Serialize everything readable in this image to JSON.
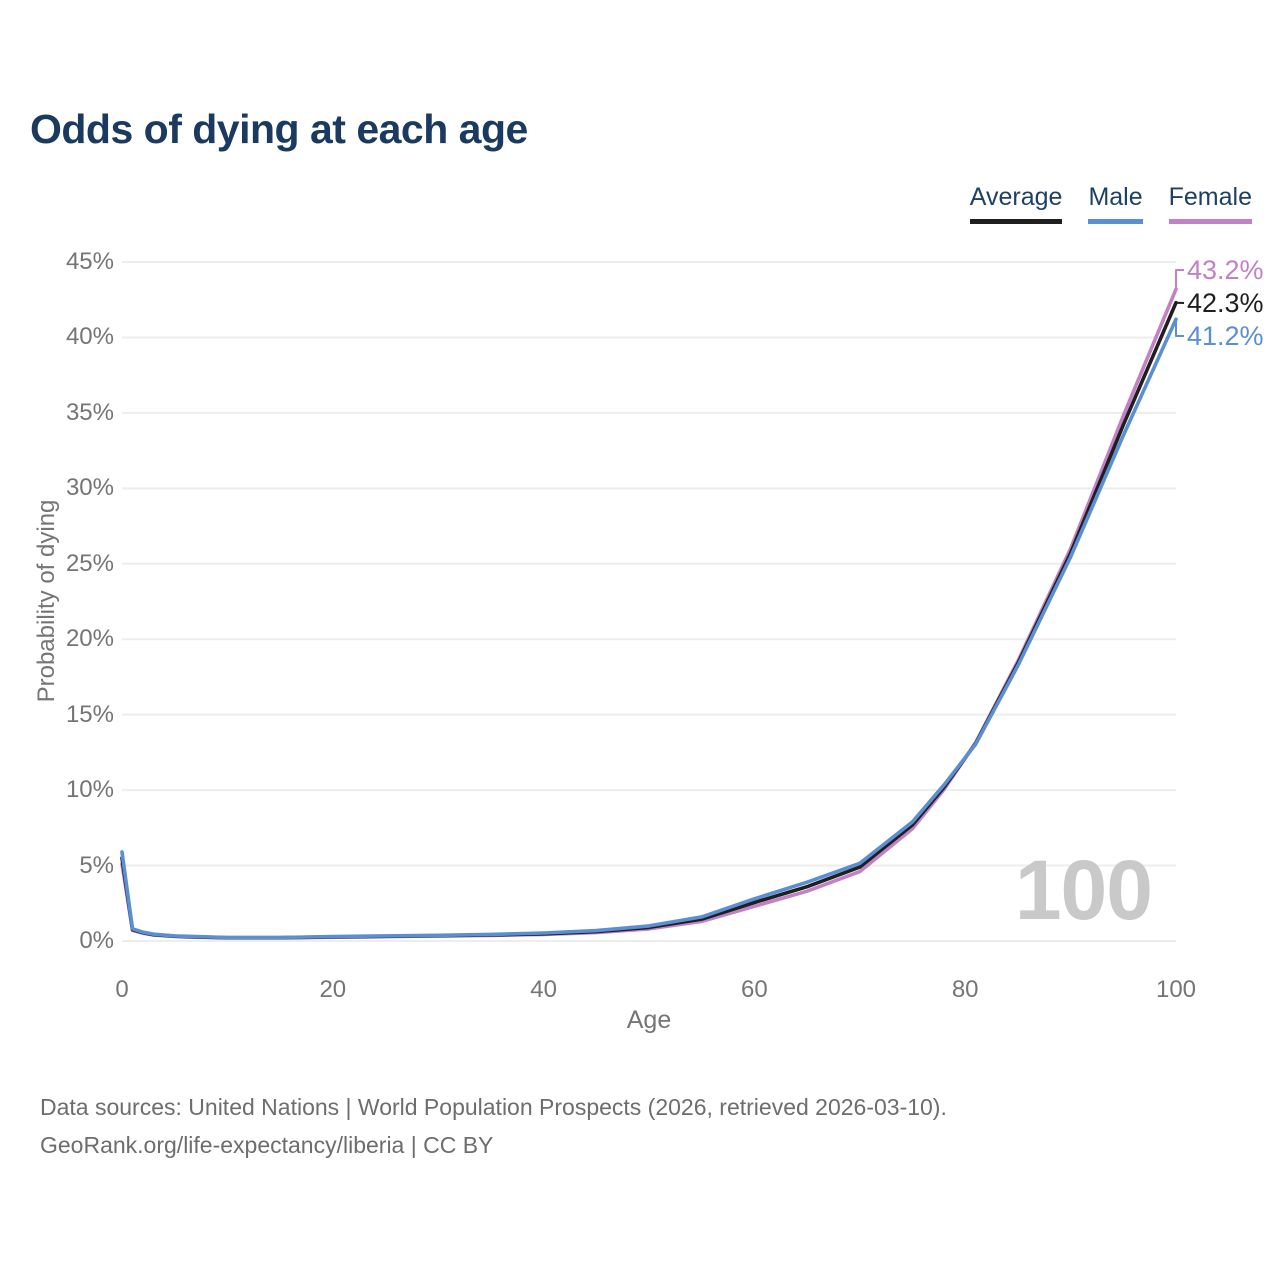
{
  "title": "Odds of dying at each age",
  "legend": {
    "items": [
      {
        "label": "Average",
        "color": "#1f1f1f"
      },
      {
        "label": "Male",
        "color": "#5b8fd3"
      },
      {
        "label": "Female",
        "color": "#c181c4"
      }
    ]
  },
  "watermark": "100",
  "footer": {
    "line1": "Data sources: United Nations | World Population Prospects (2026, retrieved 2026-03-10).",
    "line2": "GeoRank.org/life-expectancy/liberia | CC BY"
  },
  "colors": {
    "title_text": "#1b3a5f",
    "axis_text": "#757575",
    "gridline": "#ededed",
    "watermark": "#c9c9c9",
    "footer_text": "#6d6d6d"
  },
  "chart_data": {
    "type": "line",
    "title": "Odds of dying at each age",
    "xlabel": "Age",
    "ylabel": "Probability of dying",
    "xlim": [
      0,
      100
    ],
    "ylim": [
      0,
      45
    ],
    "xticks": [
      0,
      20,
      40,
      60,
      80,
      100
    ],
    "yticks": [
      "0%",
      "5%",
      "10%",
      "15%",
      "20%",
      "25%",
      "30%",
      "35%",
      "40%",
      "45%"
    ],
    "grid": "horizontal",
    "legend_position": "top-right",
    "x": [
      0,
      1,
      2,
      3,
      5,
      7,
      10,
      15,
      20,
      25,
      30,
      35,
      40,
      45,
      50,
      55,
      60,
      65,
      70,
      75,
      78,
      81,
      85,
      90,
      95,
      100
    ],
    "series": [
      {
        "name": "Average",
        "color": "#1f1f1f",
        "end_label": "42.3%",
        "end_value": 42.3,
        "values": [
          5.5,
          0.75,
          0.55,
          0.42,
          0.32,
          0.27,
          0.22,
          0.22,
          0.27,
          0.31,
          0.35,
          0.4,
          0.48,
          0.62,
          0.9,
          1.45,
          2.55,
          3.6,
          4.9,
          7.7,
          10.2,
          13.1,
          18.4,
          25.7,
          34.2,
          42.3
        ]
      },
      {
        "name": "Male",
        "color": "#5b8fd3",
        "end_label": "41.2%",
        "end_value": 41.2,
        "values": [
          5.9,
          0.8,
          0.58,
          0.45,
          0.34,
          0.29,
          0.23,
          0.23,
          0.29,
          0.34,
          0.38,
          0.44,
          0.53,
          0.69,
          1.0,
          1.6,
          2.8,
          3.9,
          5.15,
          7.9,
          10.35,
          13.05,
          18.25,
          25.45,
          33.5,
          41.2
        ]
      },
      {
        "name": "Female",
        "color": "#c181c4",
        "end_label": "43.2%",
        "end_value": 43.2,
        "values": [
          5.1,
          0.7,
          0.52,
          0.4,
          0.3,
          0.25,
          0.21,
          0.21,
          0.25,
          0.29,
          0.33,
          0.37,
          0.44,
          0.56,
          0.8,
          1.3,
          2.3,
          3.3,
          4.6,
          7.45,
          10.05,
          13.15,
          18.55,
          26.0,
          34.8,
          43.2
        ]
      }
    ]
  }
}
